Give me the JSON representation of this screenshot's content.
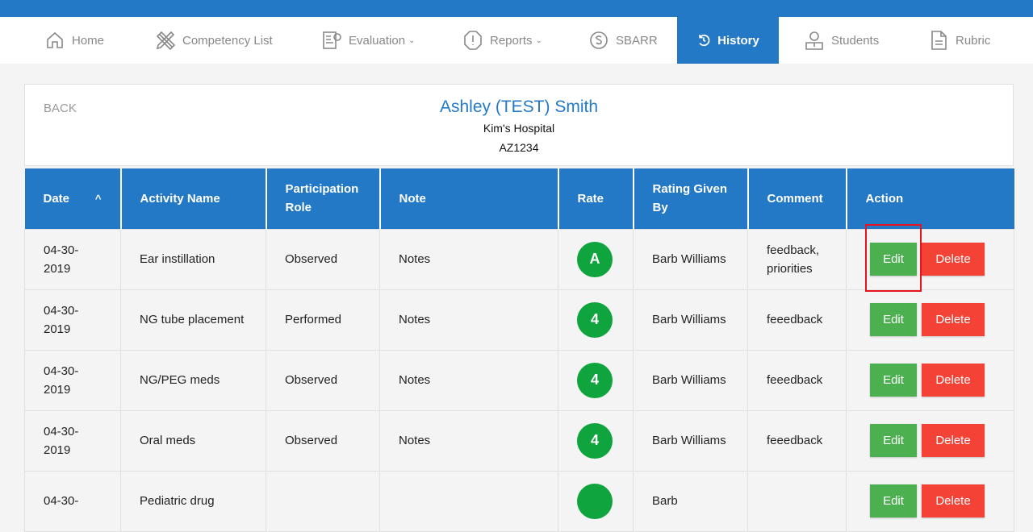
{
  "nav": {
    "items": [
      {
        "label": "Home",
        "icon": "home-icon"
      },
      {
        "label": "Competency List",
        "icon": "pencil-ruler-icon"
      },
      {
        "label": "Evaluation",
        "icon": "evaluation-icon",
        "dropdown": true
      },
      {
        "label": "Reports",
        "icon": "alert-octagon-icon",
        "dropdown": true
      },
      {
        "label": "SBARR",
        "icon": "s-circle-icon"
      },
      {
        "label": "History",
        "icon": "history-icon",
        "active": true
      },
      {
        "label": "Students",
        "icon": "student-icon"
      },
      {
        "label": "Rubric",
        "icon": "document-icon"
      }
    ]
  },
  "header": {
    "back": "BACK",
    "student_name": "Ashley (TEST) Smith",
    "hospital": "Kim's Hospital",
    "code": "AZ1234"
  },
  "table": {
    "columns": [
      "Date",
      "Activity Name",
      "Participation Role",
      "Note",
      "Rate",
      "Rating Given By",
      "Comment",
      "Action"
    ],
    "sort_indicator": "^",
    "edit_label": "Edit",
    "delete_label": "Delete",
    "rows": [
      {
        "date": "04-30-2019",
        "activity": "Ear instillation",
        "role": "Observed",
        "note": "Notes",
        "rate": "A",
        "by": "Barb Williams",
        "comment": "feedback, priorities"
      },
      {
        "date": "04-30-2019",
        "activity": "NG tube placement",
        "role": "Performed",
        "note": "Notes",
        "rate": "4",
        "by": "Barb Williams",
        "comment": "feeedback"
      },
      {
        "date": "04-30-2019",
        "activity": "NG/PEG meds",
        "role": "Observed",
        "note": "Notes",
        "rate": "4",
        "by": "Barb Williams",
        "comment": "feeedback"
      },
      {
        "date": "04-30-2019",
        "activity": "Oral meds",
        "role": "Observed",
        "note": "Notes",
        "rate": "4",
        "by": "Barb Williams",
        "comment": "feeedback"
      },
      {
        "date": "04-30-",
        "activity": "Pediatric drug",
        "role": "",
        "note": "",
        "rate": "",
        "by": "Barb",
        "comment": ""
      }
    ]
  },
  "colors": {
    "primary": "#2479c6",
    "edit": "#4caf50",
    "delete": "#f44336",
    "rate": "#0fa43e",
    "highlight": "#e8141c"
  }
}
